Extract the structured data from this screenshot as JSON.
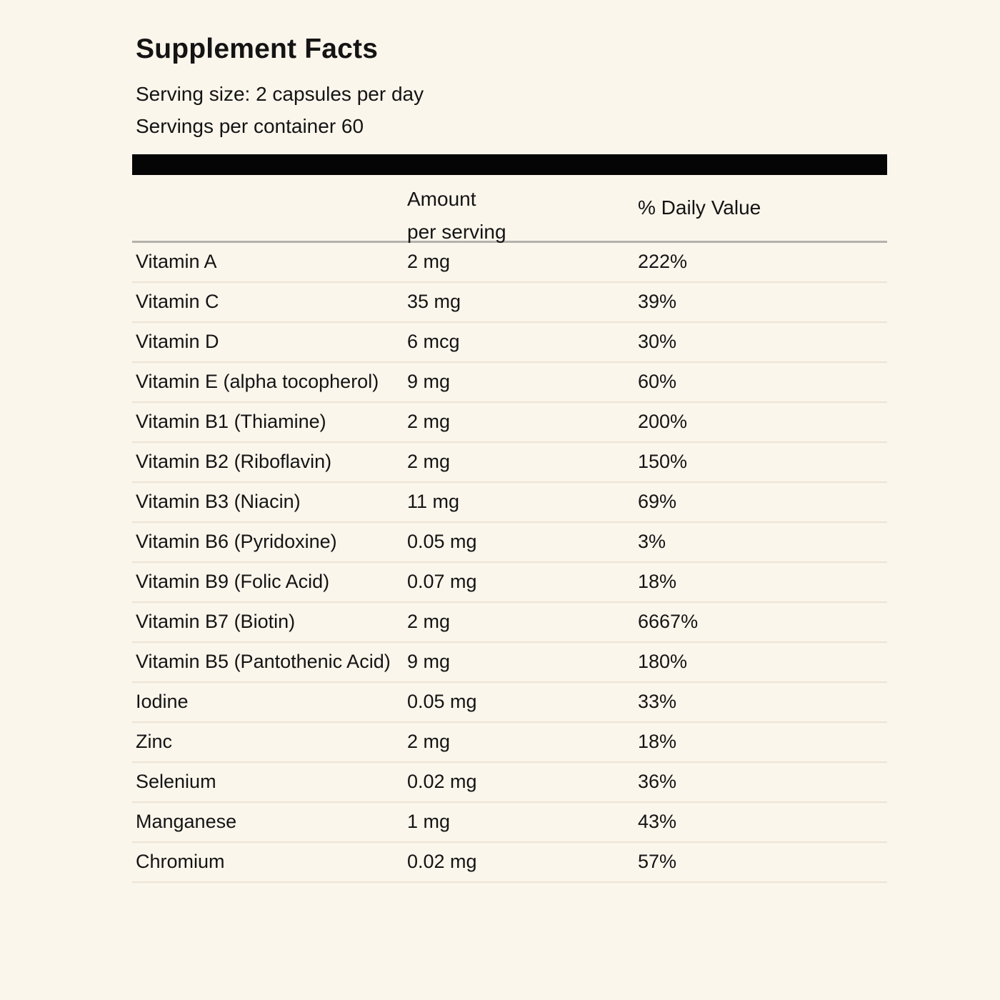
{
  "label": {
    "title": "Supplement Facts",
    "serving_size": "Serving size: 2 capsules per day",
    "servings_per_container": "Servings per container 60"
  },
  "table": {
    "columns": {
      "amount_line1": "Amount",
      "amount_line2": "per serving",
      "daily_value": "% Daily Value"
    },
    "rows": [
      {
        "name": "Vitamin A",
        "amount": "2 mg",
        "daily_value": "222%"
      },
      {
        "name": "Vitamin C",
        "amount": "35 mg",
        "daily_value": "39%"
      },
      {
        "name": "Vitamin D",
        "amount": "6 mcg",
        "daily_value": "30%"
      },
      {
        "name": "Vitamin E (alpha tocopherol)",
        "amount": "9 mg",
        "daily_value": "60%"
      },
      {
        "name": "Vitamin B1 (Thiamine)",
        "amount": "2 mg",
        "daily_value": "200%"
      },
      {
        "name": "Vitamin B2 (Riboflavin)",
        "amount": "2 mg",
        "daily_value": "150%"
      },
      {
        "name": "Vitamin B3 (Niacin)",
        "amount": "11 mg",
        "daily_value": "69%"
      },
      {
        "name": "Vitamin B6 (Pyridoxine)",
        "amount": "0.05 mg",
        "daily_value": "3%"
      },
      {
        "name": "Vitamin B9 (Folic Acid)",
        "amount": "0.07 mg",
        "daily_value": "18%"
      },
      {
        "name": "Vitamin B7 (Biotin)",
        "amount": "2 mg",
        "daily_value": "6667%"
      },
      {
        "name": "Vitamin B5 (Pantothenic Acid)",
        "amount": "9 mg",
        "daily_value": "180%"
      },
      {
        "name": "Iodine",
        "amount": "0.05 mg",
        "daily_value": "33%"
      },
      {
        "name": "Zinc",
        "amount": "2 mg",
        "daily_value": "18%"
      },
      {
        "name": "Selenium",
        "amount": "0.02 mg",
        "daily_value": "36%"
      },
      {
        "name": "Manganese",
        "amount": "1 mg",
        "daily_value": "43%"
      },
      {
        "name": "Chromium",
        "amount": "0.02 mg",
        "daily_value": "57%"
      }
    ]
  },
  "colors": {
    "background": "#FBF6EC",
    "text": "#141414",
    "bar": "#050505",
    "header_divider": "#B3B1AB",
    "row_divider": "#EDE4D2"
  }
}
